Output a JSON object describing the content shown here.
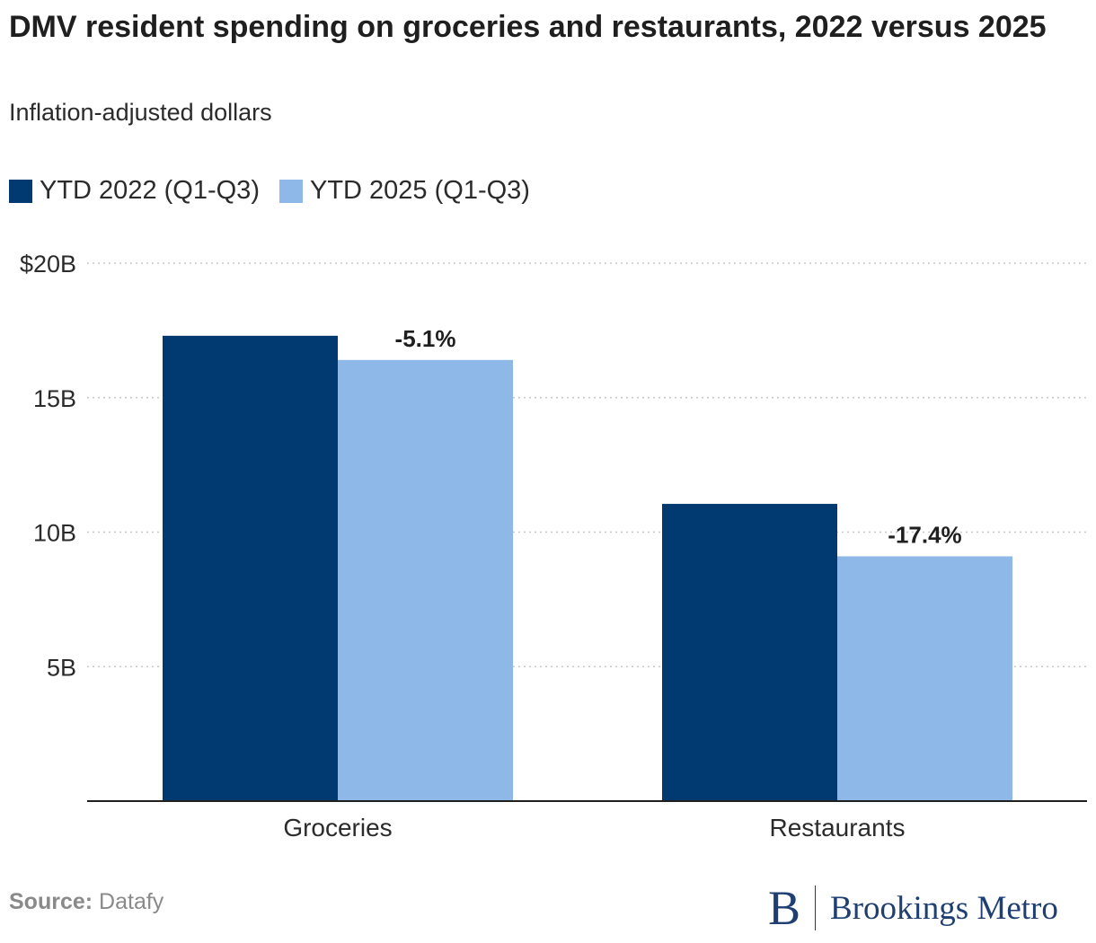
{
  "chart_data": {
    "type": "bar",
    "title": "DMV resident spending on groceries and restaurants, 2022 versus 2025",
    "subtitle": "Inflation-adjusted dollars",
    "categories": [
      "Groceries",
      "Restaurants"
    ],
    "series": [
      {
        "name": "YTD 2022 (Q1-Q3)",
        "color": "#003a70",
        "values": [
          17.3,
          11.05
        ]
      },
      {
        "name": "YTD 2025 (Q1-Q3)",
        "color": "#8db8e8",
        "values": [
          16.4,
          9.1
        ]
      }
    ],
    "annotations": [
      "-5.1%",
      "-17.4%"
    ],
    "y_ticks": [
      {
        "value": 5,
        "label": "5B"
      },
      {
        "value": 10,
        "label": "10B"
      },
      {
        "value": 15,
        "label": "15B"
      },
      {
        "value": 20,
        "label": "$20B"
      }
    ],
    "ylim": [
      0,
      20
    ],
    "grid": true,
    "legend_position": "top-left"
  },
  "source": {
    "label": "Source:",
    "text": "Datafy"
  },
  "branding": {
    "mark": "B",
    "name": "Brookings Metro"
  }
}
